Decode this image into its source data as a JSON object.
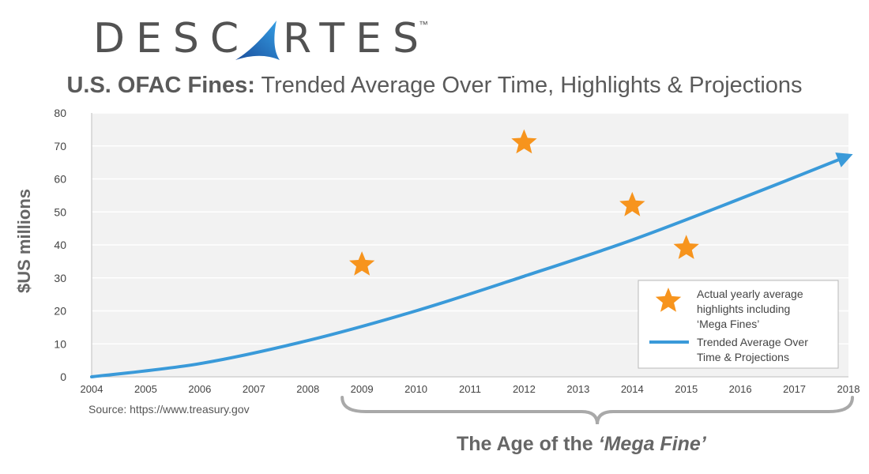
{
  "brand": {
    "logo_left": "DESC",
    "logo_right": "RTES",
    "trademark": "™",
    "logo_colors": [
      "#1a4e9c",
      "#2f8fd8"
    ],
    "text_color": "#525252"
  },
  "title_bold": "U.S. OFAC Fines:",
  "title_rest": " Trended Average Over Time, Highlights & Projections",
  "source": "Source: https://www.treasury.gov",
  "brace_label_prefix": "The Age of the ",
  "brace_label_italic": "‘Mega Fine’",
  "chart_data": {
    "type": "line",
    "ylabel": "$US millions",
    "xlim": [
      2004,
      2018
    ],
    "ylim": [
      0,
      80
    ],
    "x_ticks": [
      2004,
      2005,
      2006,
      2007,
      2008,
      2009,
      2010,
      2011,
      2012,
      2013,
      2014,
      2015,
      2016,
      2017,
      2018
    ],
    "y_ticks": [
      0,
      10,
      20,
      30,
      40,
      50,
      60,
      70,
      80
    ],
    "grid": "horizontal",
    "legend_position": "bottom-right",
    "series": [
      {
        "name": "Actual yearly average highlights including ‘Mega Fines’",
        "legend_lines": [
          "Actual yearly average",
          "highlights including",
          "‘Mega Fines’"
        ],
        "marker": "star",
        "color": "#f7941d",
        "x": [
          2009,
          2012,
          2014,
          2015
        ],
        "y": [
          34,
          71,
          52,
          39
        ]
      },
      {
        "name": "Trended Average Over Time & Projections",
        "legend_lines": [
          "Trended Average Over",
          "Time & Projections"
        ],
        "marker": "arrow-line",
        "color": "#3a9ad9",
        "x": [
          2004,
          2006,
          2008,
          2010,
          2012,
          2014,
          2016,
          2018
        ],
        "y": [
          0,
          4,
          11,
          20,
          30.5,
          41.5,
          54,
          67
        ]
      }
    ],
    "brace_range": [
      2009,
      2018
    ]
  }
}
